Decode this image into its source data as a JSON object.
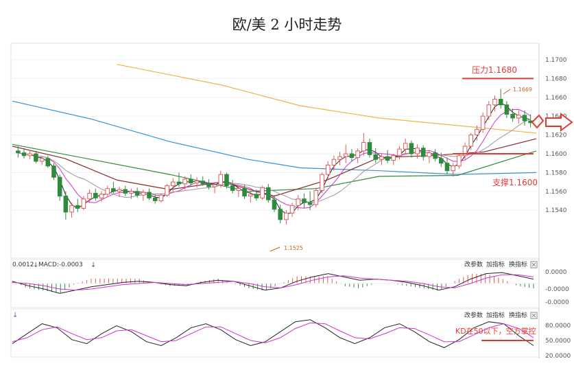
{
  "title": "欧/美 2 小时走势",
  "main_panel": {
    "y_ticks": [
      "1.1700",
      "1.1680",
      "1.1660",
      "1.1640",
      "1.1620",
      "1.1600",
      "1.1580",
      "1.1560",
      "1.1540"
    ],
    "annotations": {
      "resistance_label": "压力1.1680",
      "support_label": "支撑1.1600",
      "high_label": "1.1669",
      "low_label": "1.1525"
    },
    "colors": {
      "resistance": "#e53935",
      "support": "#e53935",
      "up_candle": "#e05a5a",
      "down_candle": "#2e8b3e",
      "ma_orange": "#f0b24a",
      "ma_blue": "#3a8fd6",
      "ma_green": "#2e8b3e",
      "ma_brown": "#8b2a2a",
      "ma_black": "#222222",
      "ma_magenta": "#cc33cc",
      "ma_gray": "#999999"
    }
  },
  "macd_panel": {
    "header_left": "0.0012",
    "header_macd": "MACD:-0.0003",
    "y_ticks": [
      "0.0000",
      "-0.0000",
      "-0.0000"
    ],
    "buttons": [
      "改参数",
      "加指标",
      "换指标"
    ]
  },
  "kd_panel": {
    "buttons": [
      "改参数",
      "加指标",
      "换指标"
    ],
    "y_ticks": [
      "80.0000",
      "50.0000",
      "20.0000"
    ],
    "annotation": "KD在50以下，空方掌控"
  },
  "chart_data": {
    "type": "candlestick",
    "title": "欧/美 2 小时走势",
    "instrument": "EUR/USD",
    "ylim": [
      1.1525,
      1.1705
    ],
    "levels": [
      {
        "name": "压力",
        "value": 1.168
      },
      {
        "name": "支撑",
        "value": 1.16
      }
    ],
    "marked_points": [
      {
        "label": "1.1669",
        "value": 1.1669
      },
      {
        "label": "1.1525",
        "value": 1.1525
      }
    ],
    "candles": [
      [
        1.1603,
        1.1608,
        1.1596,
        1.1601
      ],
      [
        1.1601,
        1.1606,
        1.1595,
        1.1598
      ],
      [
        1.1598,
        1.1604,
        1.1594,
        1.16
      ],
      [
        1.16,
        1.1603,
        1.159,
        1.1592
      ],
      [
        1.1592,
        1.1597,
        1.1588,
        1.1595
      ],
      [
        1.1595,
        1.1598,
        1.1585,
        1.1587
      ],
      [
        1.1587,
        1.159,
        1.1572,
        1.1575
      ],
      [
        1.1575,
        1.1578,
        1.155,
        1.1555
      ],
      [
        1.1555,
        1.156,
        1.153,
        1.1538
      ],
      [
        1.1538,
        1.1548,
        1.1532,
        1.1545
      ],
      [
        1.1545,
        1.1552,
        1.1538,
        1.1542
      ],
      [
        1.1542,
        1.1555,
        1.154,
        1.1552
      ],
      [
        1.1552,
        1.1562,
        1.1548,
        1.1558
      ],
      [
        1.1558,
        1.1563,
        1.155,
        1.1553
      ],
      [
        1.1553,
        1.156,
        1.1549,
        1.1557
      ],
      [
        1.1557,
        1.1566,
        1.1554,
        1.1563
      ],
      [
        1.1563,
        1.157,
        1.1558,
        1.156
      ],
      [
        1.156,
        1.1565,
        1.1554,
        1.1562
      ],
      [
        1.1562,
        1.1566,
        1.1555,
        1.1558
      ],
      [
        1.1558,
        1.1563,
        1.1552,
        1.156
      ],
      [
        1.156,
        1.1564,
        1.1553,
        1.1556
      ],
      [
        1.1556,
        1.1562,
        1.155,
        1.1559
      ],
      [
        1.1559,
        1.1563,
        1.1551,
        1.1553
      ],
      [
        1.1553,
        1.1557,
        1.1547,
        1.155
      ],
      [
        1.155,
        1.1558,
        1.1548,
        1.1556
      ],
      [
        1.1556,
        1.1568,
        1.1554,
        1.1566
      ],
      [
        1.1566,
        1.1574,
        1.156,
        1.157
      ],
      [
        1.157,
        1.158,
        1.1565,
        1.1568
      ],
      [
        1.1568,
        1.1576,
        1.1562,
        1.1573
      ],
      [
        1.1573,
        1.1578,
        1.1566,
        1.1569
      ],
      [
        1.1569,
        1.1575,
        1.1564,
        1.1571
      ],
      [
        1.1571,
        1.1576,
        1.1566,
        1.1568
      ],
      [
        1.1568,
        1.1573,
        1.1562,
        1.1565
      ],
      [
        1.1565,
        1.157,
        1.1558,
        1.1567
      ],
      [
        1.1567,
        1.1582,
        1.1564,
        1.1578
      ],
      [
        1.1578,
        1.158,
        1.1563,
        1.1566
      ],
      [
        1.1566,
        1.1572,
        1.1558,
        1.1561
      ],
      [
        1.1561,
        1.1566,
        1.1554,
        1.1563
      ],
      [
        1.1563,
        1.1567,
        1.1552,
        1.1555
      ],
      [
        1.1555,
        1.156,
        1.1548,
        1.1557
      ],
      [
        1.1557,
        1.1562,
        1.155,
        1.1553
      ],
      [
        1.1553,
        1.1566,
        1.1551,
        1.1564
      ],
      [
        1.1564,
        1.1568,
        1.1548,
        1.1551
      ],
      [
        1.1551,
        1.1556,
        1.1538,
        1.1541
      ],
      [
        1.1541,
        1.1546,
        1.1526,
        1.153
      ],
      [
        1.153,
        1.154,
        1.1525,
        1.1537
      ],
      [
        1.1537,
        1.1548,
        1.1533,
        1.1545
      ],
      [
        1.1545,
        1.1556,
        1.154,
        1.1552
      ],
      [
        1.1552,
        1.1558,
        1.1542,
        1.1548
      ],
      [
        1.1548,
        1.156,
        1.154,
        1.1546
      ],
      [
        1.1546,
        1.1564,
        1.1543,
        1.1561
      ],
      [
        1.1561,
        1.158,
        1.1558,
        1.1578
      ],
      [
        1.1578,
        1.1592,
        1.1572,
        1.1588
      ],
      [
        1.1588,
        1.1598,
        1.1582,
        1.1594
      ],
      [
        1.1594,
        1.1602,
        1.1588,
        1.1597
      ],
      [
        1.1597,
        1.161,
        1.159,
        1.16
      ],
      [
        1.16,
        1.1605,
        1.1592,
        1.1596
      ],
      [
        1.1596,
        1.1606,
        1.159,
        1.1603
      ],
      [
        1.1603,
        1.1622,
        1.1598,
        1.1612
      ],
      [
        1.1612,
        1.1616,
        1.1596,
        1.1599
      ],
      [
        1.1599,
        1.1606,
        1.159,
        1.1594
      ],
      [
        1.1594,
        1.16,
        1.1588,
        1.1597
      ],
      [
        1.1597,
        1.1604,
        1.159,
        1.1593
      ],
      [
        1.1593,
        1.16,
        1.1588,
        1.1598
      ],
      [
        1.1598,
        1.1608,
        1.1594,
        1.1605
      ],
      [
        1.1605,
        1.1616,
        1.16,
        1.1611
      ],
      [
        1.1611,
        1.1614,
        1.1596,
        1.16
      ],
      [
        1.16,
        1.161,
        1.1595,
        1.1606
      ],
      [
        1.1606,
        1.1609,
        1.1593,
        1.1597
      ],
      [
        1.1597,
        1.1604,
        1.159,
        1.1601
      ],
      [
        1.1601,
        1.1605,
        1.1592,
        1.1595
      ],
      [
        1.1595,
        1.1601,
        1.1586,
        1.159
      ],
      [
        1.159,
        1.1596,
        1.1578,
        1.1582
      ],
      [
        1.1582,
        1.159,
        1.1576,
        1.1587
      ],
      [
        1.1587,
        1.16,
        1.1584,
        1.1598
      ],
      [
        1.1598,
        1.1612,
        1.1594,
        1.1608
      ],
      [
        1.1608,
        1.1622,
        1.1604,
        1.162
      ],
      [
        1.162,
        1.163,
        1.1614,
        1.1626
      ],
      [
        1.1626,
        1.1644,
        1.1622,
        1.164
      ],
      [
        1.164,
        1.1656,
        1.1636,
        1.1652
      ],
      [
        1.1652,
        1.1662,
        1.1645,
        1.1658
      ],
      [
        1.1658,
        1.1669,
        1.1648,
        1.1652
      ],
      [
        1.1652,
        1.1656,
        1.1638,
        1.1642
      ],
      [
        1.1642,
        1.1648,
        1.1634,
        1.1638
      ],
      [
        1.1638,
        1.1646,
        1.1632,
        1.1641
      ],
      [
        1.1641,
        1.1646,
        1.163,
        1.1635
      ],
      [
        1.1635,
        1.1642,
        1.1628,
        1.1633
      ]
    ],
    "ma_series": [
      {
        "color": "#f0b24a",
        "points": [
          [
            0.2,
            1.1695
          ],
          [
            0.4,
            1.1673
          ],
          [
            0.55,
            1.1651
          ],
          [
            0.7,
            1.1638
          ],
          [
            0.85,
            1.163
          ],
          [
            1.0,
            1.1622
          ]
        ]
      },
      {
        "color": "#3a8fd6",
        "points": [
          [
            0.0,
            1.1656
          ],
          [
            0.15,
            1.1637
          ],
          [
            0.3,
            1.1613
          ],
          [
            0.45,
            1.1594
          ],
          [
            0.55,
            1.1585
          ],
          [
            0.7,
            1.1582
          ],
          [
            0.85,
            1.1578
          ],
          [
            1.0,
            1.158
          ]
        ]
      },
      {
        "color": "#2e8b3e",
        "points": [
          [
            0.0,
            1.161
          ],
          [
            0.15,
            1.1594
          ],
          [
            0.3,
            1.1578
          ],
          [
            0.45,
            1.156
          ],
          [
            0.58,
            1.1563
          ],
          [
            0.7,
            1.1576
          ],
          [
            0.85,
            1.1577
          ],
          [
            1.0,
            1.1603
          ]
        ]
      },
      {
        "color": "#8b2a2a",
        "points": [
          [
            0.0,
            1.1608
          ],
          [
            0.1,
            1.1595
          ],
          [
            0.2,
            1.1572
          ],
          [
            0.3,
            1.1562
          ],
          [
            0.4,
            1.157
          ],
          [
            0.5,
            1.1555
          ],
          [
            0.6,
            1.1572
          ],
          [
            0.7,
            1.1596
          ],
          [
            0.8,
            1.1598
          ],
          [
            0.9,
            1.1602
          ],
          [
            1.0,
            1.1616
          ]
        ]
      }
    ],
    "macd_panel": {
      "macd_line": [
        0.2,
        -0.2,
        -0.5,
        -0.9,
        -0.6,
        -0.3,
        -0.1,
        0.1,
        0.2,
        0.1,
        -0.1,
        -0.2,
        0.1,
        0.3,
        0.2,
        -0.2,
        -0.6,
        -0.4,
        0.2,
        0.6,
        0.9,
        0.6,
        0.3,
        0.4,
        0.3,
        0.1,
        -0.2,
        -0.6,
        -0.3,
        0.4,
        0.9,
        1.0,
        0.7,
        0.4
      ],
      "signal_line": [
        0.1,
        0.0,
        -0.2,
        -0.5,
        -0.6,
        -0.5,
        -0.3,
        -0.1,
        0.0,
        0.1,
        0.0,
        -0.1,
        0.0,
        0.1,
        0.2,
        0.0,
        -0.3,
        -0.4,
        -0.1,
        0.3,
        0.6,
        0.7,
        0.5,
        0.4,
        0.3,
        0.2,
        0.0,
        -0.3,
        -0.4,
        0.0,
        0.5,
        0.8,
        0.8,
        0.6
      ]
    },
    "kd_panel": {
      "k": [
        30,
        55,
        80,
        70,
        40,
        30,
        55,
        75,
        60,
        35,
        25,
        45,
        70,
        80,
        65,
        40,
        25,
        35,
        60,
        85,
        90,
        70,
        45,
        30,
        45,
        70,
        80,
        60,
        35,
        20,
        40,
        70,
        85,
        80,
        50,
        25
      ],
      "d": [
        35,
        45,
        65,
        72,
        55,
        40,
        45,
        62,
        65,
        50,
        35,
        38,
        55,
        72,
        72,
        55,
        38,
        32,
        45,
        68,
        82,
        80,
        62,
        45,
        42,
        55,
        70,
        68,
        52,
        35,
        35,
        52,
        70,
        80,
        68,
        45
      ]
    }
  }
}
